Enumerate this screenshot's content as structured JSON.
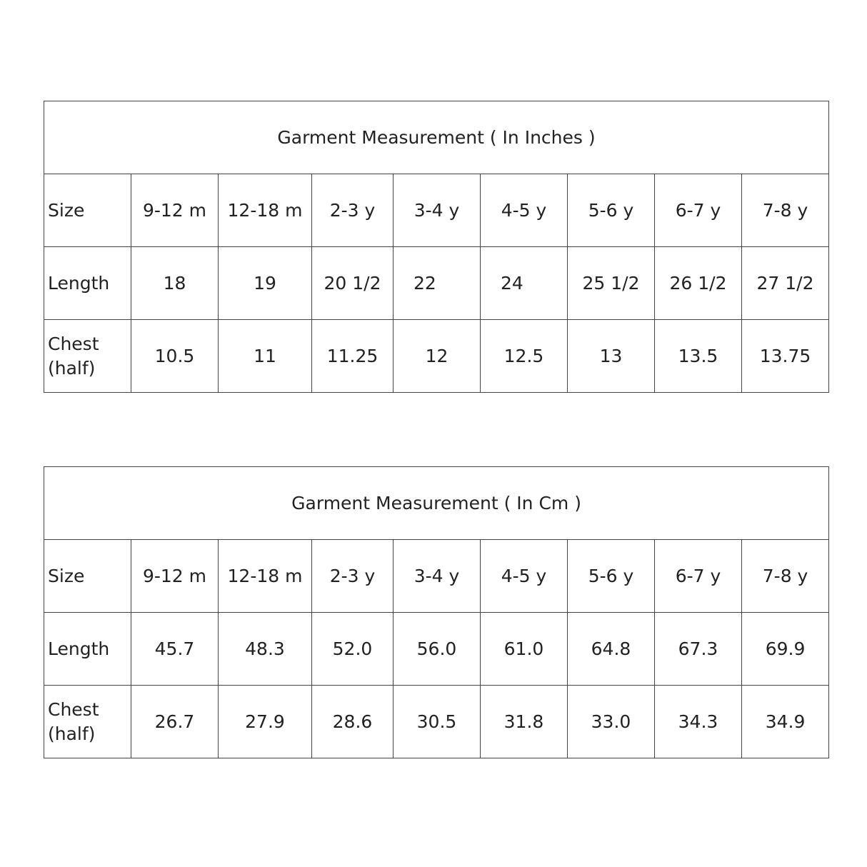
{
  "tables": [
    {
      "title": "Garment Measurement ( In Inches )",
      "sizes_label": "Size",
      "sizes": [
        "9-12 m",
        "12-18 m",
        "2-3 y",
        "3-4 y",
        "4-5 y",
        "5-6 y",
        "6-7 y",
        "7-8 y"
      ],
      "rows": [
        {
          "label": "Length",
          "values": [
            "18",
            "19",
            "20 1/2",
            "22",
            "24",
            "25 1/2",
            "26 1/2",
            "27 1/2"
          ]
        },
        {
          "label": "Chest\n(half)",
          "values": [
            "10.5",
            "11",
            "11.25",
            "12",
            "12.5",
            "13",
            "13.5",
            "13.75"
          ]
        }
      ]
    },
    {
      "title": "Garment Measurement ( In Cm )",
      "sizes_label": "Size",
      "sizes": [
        "9-12 m",
        "12-18 m",
        "2-3 y",
        "3-4 y",
        "4-5 y",
        "5-6 y",
        "6-7 y",
        "7-8 y"
      ],
      "rows": [
        {
          "label": "Length",
          "values": [
            "45.7",
            "48.3",
            "52.0",
            "56.0",
            "61.0",
            "64.8",
            "67.3",
            "69.9"
          ]
        },
        {
          "label": "Chest\n(half)",
          "values": [
            "26.7",
            "27.9",
            "28.6",
            "30.5",
            "31.8",
            "33.0",
            "34.3",
            "34.9"
          ]
        }
      ]
    }
  ]
}
